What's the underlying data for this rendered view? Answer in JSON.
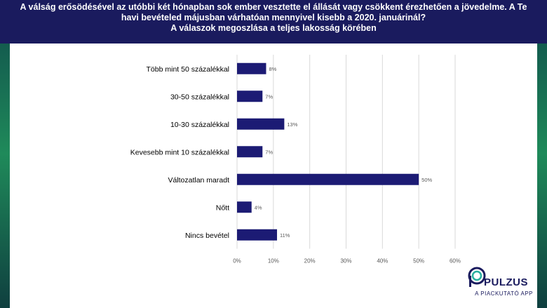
{
  "title_lines": [
    "A válság erősödésével az utóbbi két hónapban sok ember vesztette el állását vagy csökkent érezhetően a jövedelme. A Te",
    "havi bevételed májusban várhatóan mennyivel kisebb a 2020. januárinál?",
    "A válaszok megoszlása a teljes lakosság körében"
  ],
  "colors": {
    "bar": "#1c1b74",
    "header": "#1a1b5e",
    "grid": "#d9d9d9"
  },
  "logo": {
    "name": "PULZUS",
    "subtitle": "A PIACKUTATÓ APP",
    "icon": "pulzus-logo-icon"
  },
  "chart_data": {
    "type": "bar",
    "orientation": "horizontal",
    "categories": [
      "Több mint 50 százalékkal",
      "30-50 százalékkal",
      "10-30 százalékkal",
      "Kevesebb mint 10 százalékkal",
      "Változatlan maradt",
      "Nőtt",
      "Nincs bevétel"
    ],
    "values": [
      8,
      7,
      13,
      7,
      50,
      4,
      11
    ],
    "value_labels": [
      "8%",
      "7%",
      "13%",
      "7%",
      "50%",
      "4%",
      "11%"
    ],
    "x_ticks": [
      "0%",
      "10%",
      "20%",
      "30%",
      "40%",
      "50%",
      "60%"
    ],
    "xlim": [
      0,
      60
    ],
    "grid": true
  }
}
